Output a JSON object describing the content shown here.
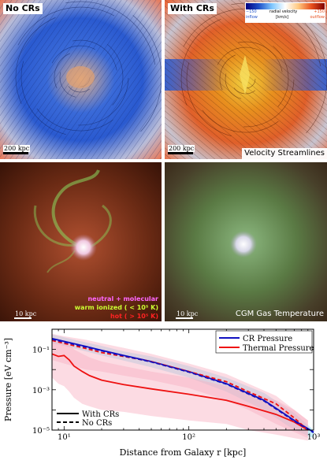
{
  "panels": {
    "top_left_label": "No CRs",
    "top_right_label": "With CRs",
    "scale_top_left": "200 kpc",
    "scale_top_right": "200 kpc",
    "top_right_caption": "Velocity Streamlines",
    "colorbar": {
      "left_value": "−150",
      "center_label": "radial velocity",
      "right_value": "+150",
      "left_note": "inflow",
      "center_unit": "[km/s]",
      "right_note": "outflow"
    },
    "scale_mid_left": "10 kpc",
    "scale_mid_right": "10 kpc",
    "temp_legend": {
      "neutral": "neutral + molecular",
      "warm": "warm ionized ( < 10⁵ K)",
      "hot": "hot ( > 10⁵ K)"
    },
    "mid_right_caption": "CGM Gas Temperature",
    "colors": {
      "neutral": "#ff66ff",
      "warm": "#ccff33",
      "hot": "#ff2222",
      "inflow": "#1e50c8",
      "outflow": "#e8501e"
    }
  },
  "chart_data": {
    "type": "line",
    "xlabel": "Distance from Galaxy r [kpc]",
    "ylabel": "Pressure [eV cm⁻³]",
    "xscale": "log",
    "yscale": "log",
    "xlim": [
      8,
      1000
    ],
    "ylim": [
      1e-05,
      1
    ],
    "x_tick_labels": [
      "10¹",
      "10²",
      "10³"
    ],
    "y_tick_labels": [
      "10⁻⁵",
      "10⁻³",
      "10⁻¹"
    ],
    "legend_top_right": [
      {
        "name": "CR Pressure",
        "color": "#1010c0"
      },
      {
        "name": "Thermal Pressure",
        "color": "#ee1111"
      }
    ],
    "legend_bottom_left": [
      {
        "name": "With CRs",
        "style": "solid"
      },
      {
        "name": "No CRs",
        "style": "dashed"
      }
    ],
    "series": [
      {
        "variant": "CR Pressure, With CRs",
        "color": "#1010c0",
        "style": "solid",
        "x": [
          8,
          10,
          15,
          20,
          30,
          50,
          100,
          200,
          400,
          700,
          1000
        ],
        "y": [
          0.35,
          0.25,
          0.14,
          0.09,
          0.05,
          0.025,
          0.008,
          0.002,
          0.0003,
          3e-05,
          8e-06
        ],
        "band_low": [
          0.2,
          0.15,
          0.08,
          0.05,
          0.028,
          0.013,
          0.004,
          0.0008,
          0.0001,
          1e-05,
          4e-06
        ],
        "band_high": [
          0.55,
          0.4,
          0.22,
          0.15,
          0.08,
          0.045,
          0.015,
          0.004,
          0.0007,
          7e-05,
          1e-05
        ]
      },
      {
        "variant": "Thermal Pressure, No CRs",
        "color": "#ee1111",
        "style": "dashed",
        "x": [
          8,
          10,
          15,
          20,
          30,
          50,
          100,
          200,
          300,
          500,
          700,
          900
        ],
        "y": [
          0.28,
          0.2,
          0.11,
          0.07,
          0.045,
          0.025,
          0.008,
          0.0025,
          0.0008,
          0.0002,
          4e-05,
          1e-05
        ],
        "band_low": [
          0.03,
          0.02,
          0.01,
          0.008,
          0.005,
          0.003,
          0.0012,
          0.0003,
          0.0001,
          2e-05,
          8e-06,
          4e-06
        ],
        "band_high": [
          0.6,
          0.45,
          0.3,
          0.2,
          0.12,
          0.06,
          0.02,
          0.006,
          0.002,
          0.0005,
          0.0001,
          3e-05
        ]
      },
      {
        "variant": "Thermal Pressure, With CRs",
        "color": "#ee1111",
        "style": "solid",
        "x": [
          8,
          9,
          10,
          11,
          12,
          14,
          16,
          20,
          30,
          50,
          100,
          200,
          300,
          500,
          700,
          900
        ],
        "y": [
          0.06,
          0.045,
          0.05,
          0.03,
          0.015,
          0.008,
          0.005,
          0.003,
          0.0018,
          0.0011,
          0.0006,
          0.0003,
          0.00015,
          6e-05,
          2.5e-05,
          1e-05
        ],
        "band_low": [
          0.004,
          0.002,
          0.0015,
          0.0008,
          0.0004,
          0.0002,
          0.00015,
          0.0001,
          8e-05,
          5e-05,
          3e-05,
          2e-05,
          1e-05,
          6e-06,
          4e-06,
          3e-06
        ],
        "band_high": [
          0.3,
          0.25,
          0.25,
          0.2,
          0.1,
          0.06,
          0.04,
          0.025,
          0.015,
          0.008,
          0.004,
          0.0015,
          0.0008,
          0.0003,
          0.0001,
          3e-05
        ]
      },
      {
        "variant": "CR Pressure, No CRs",
        "color": "#1010c0",
        "style": "dashed",
        "x": [
          8,
          10,
          15,
          20,
          30,
          50,
          100,
          200,
          400,
          700,
          1000
        ],
        "y": [
          0.32,
          0.23,
          0.13,
          0.085,
          0.048,
          0.024,
          0.0075,
          0.0019,
          0.00028,
          2.8e-05,
          7.5e-06
        ]
      }
    ]
  }
}
